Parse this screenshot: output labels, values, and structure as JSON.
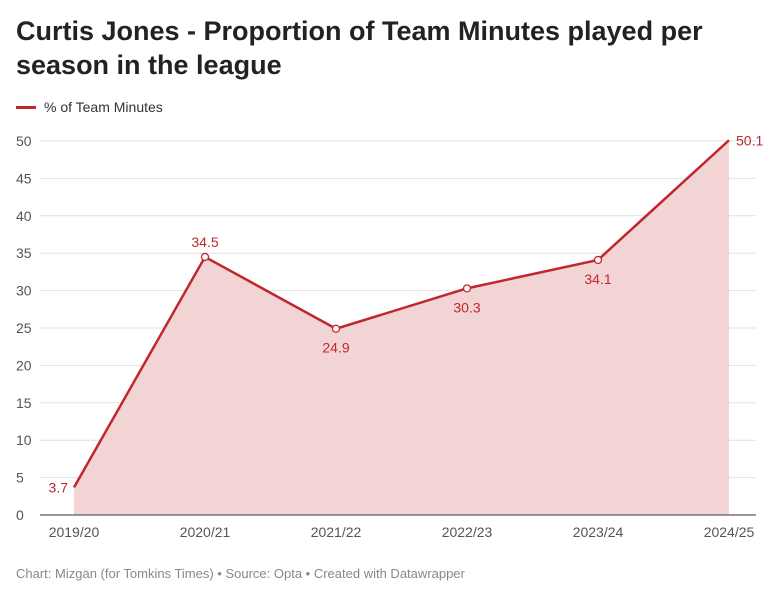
{
  "header": {
    "title": "Curtis Jones - Proportion of Team Minutes played per season in the league"
  },
  "footer": {
    "credit": "Chart: Mizgan (for Tomkins Times) • Source: Opta • Created with Datawrapper"
  },
  "colors": {
    "line": "#c0272d",
    "area": "#f3d4d5",
    "grid": "#e2e2e2",
    "axis": "#333333"
  },
  "chart_data": {
    "type": "area",
    "title": "Curtis Jones - Proportion of Team Minutes played per season in the league",
    "categories": [
      "2019/20",
      "2020/21",
      "2021/22",
      "2022/23",
      "2023/24",
      "2024/25"
    ],
    "series": [
      {
        "name": "% of Team Minutes",
        "values": [
          3.7,
          34.5,
          24.9,
          30.3,
          34.1,
          50.1
        ]
      }
    ],
    "data_labels": [
      "3.7",
      "34.5",
      "24.9",
      "30.3",
      "34.1",
      "50.1"
    ],
    "y_ticks": [
      0,
      5,
      10,
      15,
      20,
      25,
      30,
      35,
      40,
      45,
      50
    ],
    "ylim": [
      0,
      50
    ],
    "xlabel": "",
    "ylabel": "",
    "grid": true,
    "legend_position": "top-left"
  }
}
